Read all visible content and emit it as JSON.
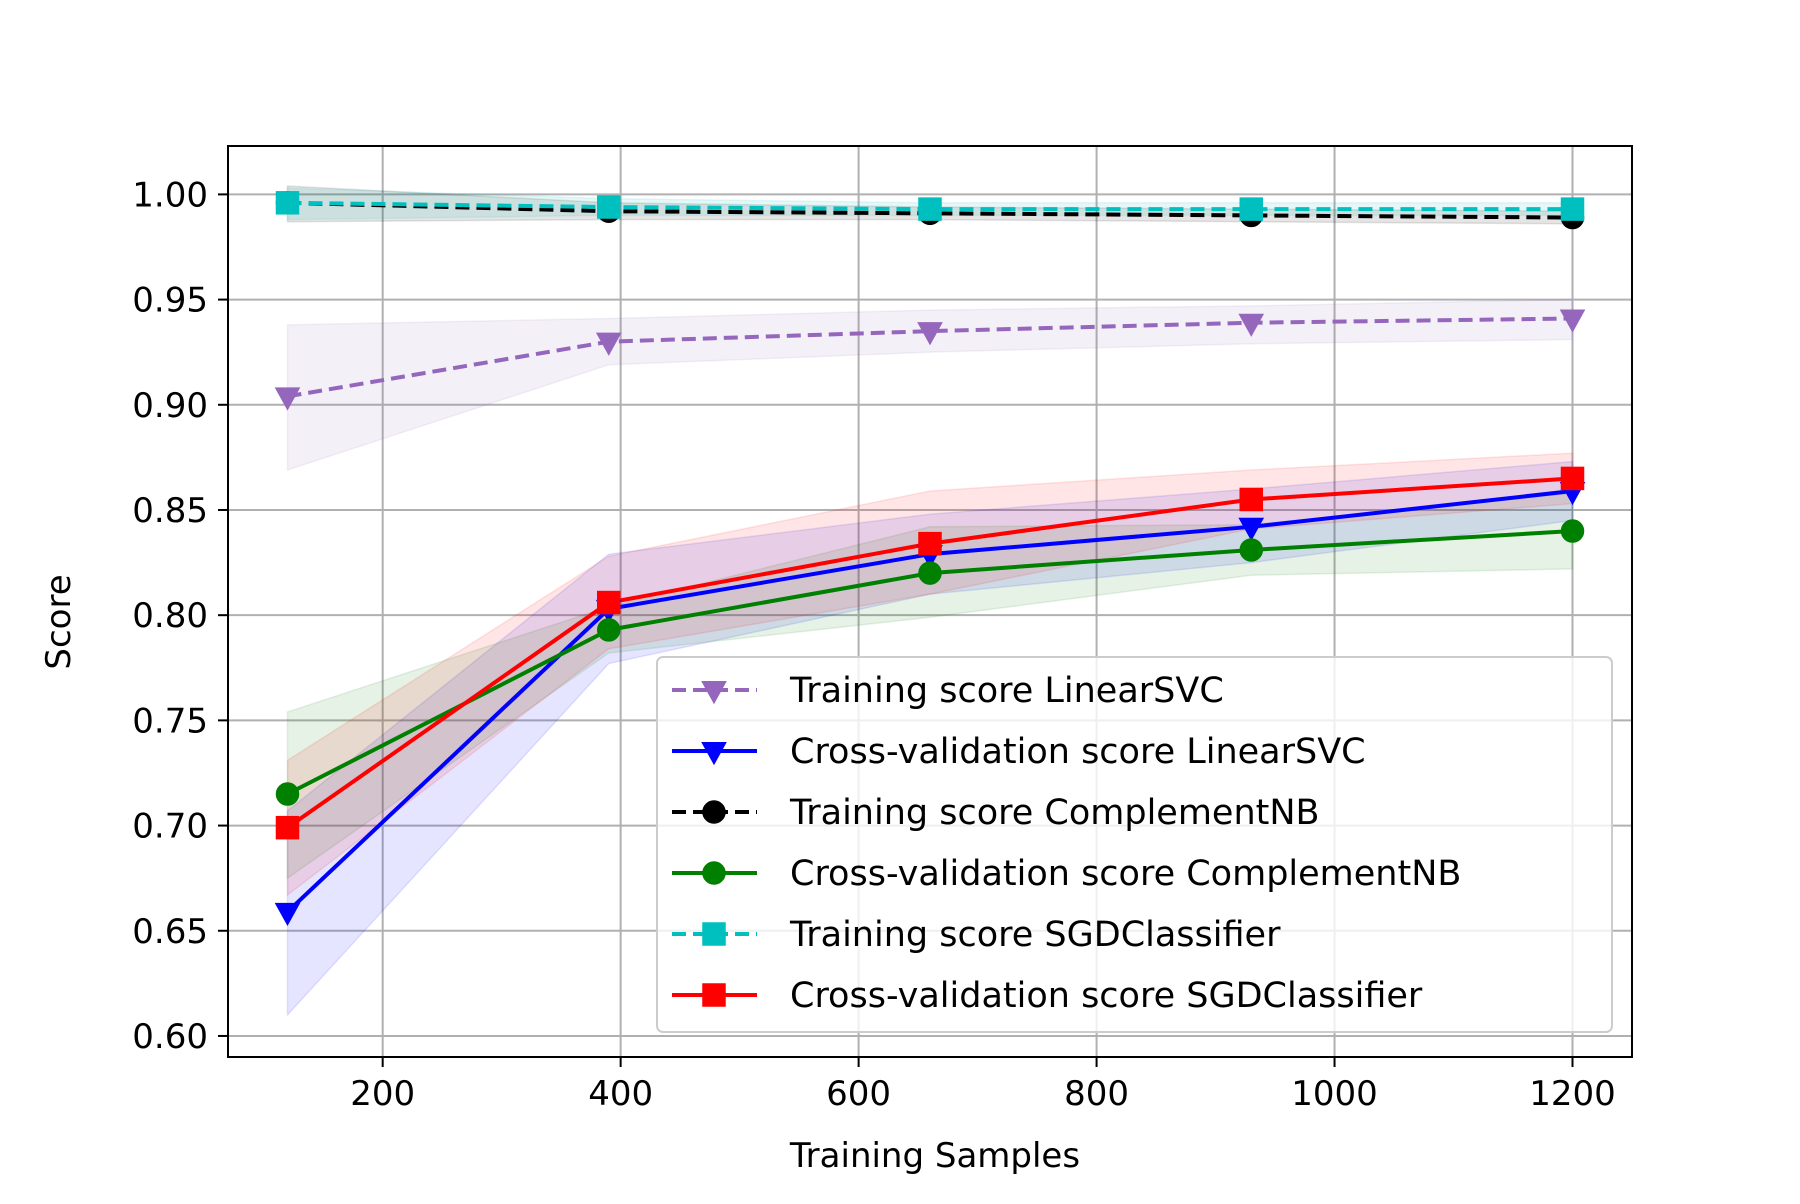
{
  "chart_data": {
    "type": "line",
    "title": "",
    "xlabel": "Training Samples",
    "ylabel": "Score",
    "xlim": [
      70,
      1250
    ],
    "ylim": [
      0.59,
      1.023
    ],
    "x": [
      120,
      390,
      660,
      930,
      1200
    ],
    "xticks": [
      {
        "value": 200,
        "label": "200"
      },
      {
        "value": 400,
        "label": "400"
      },
      {
        "value": 600,
        "label": "600"
      },
      {
        "value": 800,
        "label": "800"
      },
      {
        "value": 1000,
        "label": "1000"
      },
      {
        "value": 1200,
        "label": "1200"
      }
    ],
    "yticks": [
      {
        "value": 0.6,
        "label": "0.60"
      },
      {
        "value": 0.65,
        "label": "0.65"
      },
      {
        "value": 0.7,
        "label": "0.70"
      },
      {
        "value": 0.75,
        "label": "0.75"
      },
      {
        "value": 0.8,
        "label": "0.80"
      },
      {
        "value": 0.85,
        "label": "0.85"
      },
      {
        "value": 0.9,
        "label": "0.90"
      },
      {
        "value": 0.95,
        "label": "0.95"
      },
      {
        "value": 1.0,
        "label": "1.00"
      }
    ],
    "grid": true,
    "legend_position": "lower-right",
    "series": [
      {
        "name": "Training score LinearSVC",
        "color": "#9467bd",
        "dashed": true,
        "marker": "triangle-down",
        "values": [
          0.904,
          0.93,
          0.935,
          0.939,
          0.941
        ],
        "lower": [
          0.869,
          0.919,
          0.925,
          0.929,
          0.931
        ],
        "upper": [
          0.938,
          0.941,
          0.945,
          0.947,
          0.95
        ]
      },
      {
        "name": "Cross-validation score LinearSVC",
        "color": "#0000ff",
        "dashed": false,
        "marker": "triangle-down",
        "values": [
          0.659,
          0.803,
          0.829,
          0.842,
          0.859
        ],
        "lower": [
          0.61,
          0.777,
          0.81,
          0.825,
          0.845
        ],
        "upper": [
          0.707,
          0.829,
          0.848,
          0.86,
          0.873
        ]
      },
      {
        "name": "Training score ComplementNB",
        "color": "#000000",
        "dashed": true,
        "marker": "circle",
        "values": [
          0.996,
          0.992,
          0.991,
          0.99,
          0.989
        ],
        "lower": [
          0.987,
          0.988,
          0.988,
          0.987,
          0.986
        ],
        "upper": [
          1.004,
          0.996,
          0.994,
          0.993,
          0.992
        ]
      },
      {
        "name": "Cross-validation score ComplementNB",
        "color": "#008000",
        "dashed": false,
        "marker": "circle",
        "values": [
          0.715,
          0.793,
          0.82,
          0.831,
          0.84
        ],
        "lower": [
          0.675,
          0.782,
          0.799,
          0.819,
          0.822
        ],
        "upper": [
          0.754,
          0.804,
          0.842,
          0.843,
          0.858
        ]
      },
      {
        "name": "Training score SGDClassifier",
        "color": "#00bfbf",
        "dashed": true,
        "marker": "square",
        "values": [
          0.996,
          0.994,
          0.993,
          0.993,
          0.993
        ],
        "lower": [
          0.988,
          0.99,
          0.99,
          0.99,
          0.99
        ],
        "upper": [
          1.003,
          0.998,
          0.996,
          0.996,
          0.996
        ]
      },
      {
        "name": "Cross-validation score SGDClassifier",
        "color": "#ff0000",
        "dashed": false,
        "marker": "square",
        "values": [
          0.699,
          0.806,
          0.834,
          0.855,
          0.865
        ],
        "lower": [
          0.667,
          0.784,
          0.81,
          0.841,
          0.853
        ],
        "upper": [
          0.731,
          0.828,
          0.859,
          0.869,
          0.877
        ]
      }
    ]
  }
}
